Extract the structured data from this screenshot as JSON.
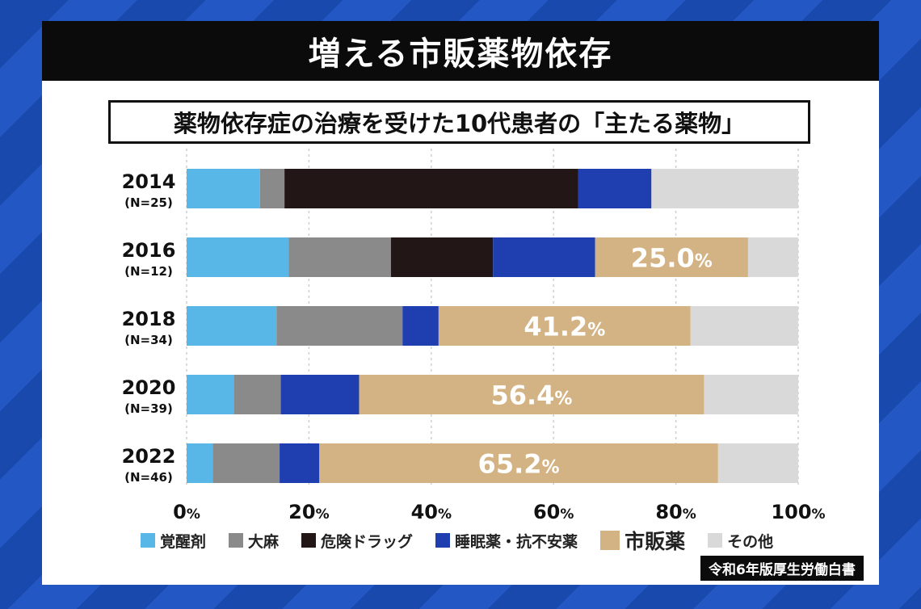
{
  "header": {
    "title": "増える市販薬物依存"
  },
  "chart_data": {
    "type": "bar",
    "orientation": "horizontal",
    "stacked": true,
    "title": "薬物依存症の治療を受けた10代患者の「主たる薬物」",
    "categories": [
      "2014",
      "2016",
      "2018",
      "2020",
      "2022"
    ],
    "sample_sizes": [
      "(N=25)",
      "(N=12)",
      "(N=34)",
      "(N=39)",
      "(N=46)"
    ],
    "xlim": [
      0,
      100
    ],
    "ticks": [
      {
        "value": 0,
        "num": "0",
        "unit": "%"
      },
      {
        "value": 20,
        "num": "20",
        "unit": "%"
      },
      {
        "value": 40,
        "num": "40",
        "unit": "%"
      },
      {
        "value": 60,
        "num": "60",
        "unit": "%"
      },
      {
        "value": 80,
        "num": "80",
        "unit": "%"
      },
      {
        "value": 100,
        "num": "100",
        "unit": "%"
      }
    ],
    "grid": true,
    "series": [
      {
        "name": "覚醒剤",
        "color": "#58b7e6",
        "values": [
          12.0,
          16.7,
          14.7,
          7.7,
          4.3
        ]
      },
      {
        "name": "大麻",
        "color": "#8a8a8a",
        "values": [
          4.0,
          16.7,
          20.6,
          7.7,
          10.9
        ]
      },
      {
        "name": "危険ドラッグ",
        "color": "#221616",
        "values": [
          48.0,
          16.7,
          0,
          0,
          0
        ]
      },
      {
        "name": "睡眠薬・抗不安薬",
        "color": "#1f3fb0",
        "values": [
          12.0,
          16.7,
          5.9,
          12.8,
          6.5
        ]
      },
      {
        "name": "市販薬",
        "color": "#d3b383",
        "values": [
          0,
          25.0,
          41.2,
          56.4,
          65.2
        ]
      },
      {
        "name": "その他",
        "color": "#d9d9d9",
        "values": [
          24.0,
          8.2,
          17.6,
          15.4,
          13.1
        ]
      }
    ],
    "data_labels": [
      {
        "category": "2016",
        "series": "市販薬",
        "num": "25.0",
        "unit": "%"
      },
      {
        "category": "2018",
        "series": "市販薬",
        "num": "41.2",
        "unit": "%"
      },
      {
        "category": "2020",
        "series": "市販薬",
        "num": "56.4",
        "unit": "%"
      },
      {
        "category": "2022",
        "series": "市販薬",
        "num": "65.2",
        "unit": "%"
      }
    ],
    "legend_position": "bottom",
    "source": "令和6年版厚生労働白書"
  }
}
